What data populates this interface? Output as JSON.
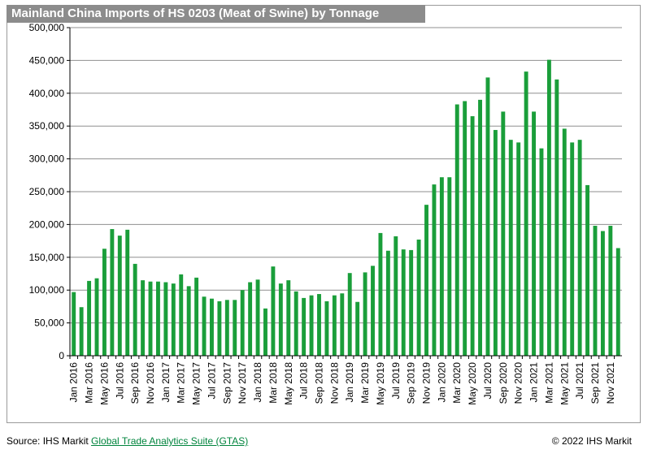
{
  "chart_data": {
    "type": "bar",
    "title": "Mainland China Imports of HS 0203 (Meat of Swine) by Tonnage",
    "xlabel": "",
    "ylabel": "",
    "ylim": [
      0,
      500000
    ],
    "yticks": [
      0,
      50000,
      100000,
      150000,
      200000,
      250000,
      300000,
      350000,
      400000,
      450000,
      500000
    ],
    "ytick_labels": [
      "0",
      "50,000",
      "100,000",
      "150,000",
      "200,000",
      "250,000",
      "300,000",
      "350,000",
      "400,000",
      "450,000",
      "500,000"
    ],
    "grid": true,
    "bar_color": "#1a9e3a",
    "categories": [
      "Jan 2016",
      "Feb 2016",
      "Mar 2016",
      "Apr 2016",
      "May 2016",
      "Jun 2016",
      "Jul 2016",
      "Aug 2016",
      "Sep 2016",
      "Oct 2016",
      "Nov 2016",
      "Dec 2016",
      "Jan 2017",
      "Feb 2017",
      "Mar 2017",
      "Apr 2017",
      "May 2017",
      "Jun 2017",
      "Jul 2017",
      "Aug 2017",
      "Sep 2017",
      "Oct 2017",
      "Nov 2017",
      "Dec 2017",
      "Jan 2018",
      "Feb 2018",
      "Mar 2018",
      "Apr 2018",
      "May 2018",
      "Jun 2018",
      "Jul 2018",
      "Aug 2018",
      "Sep 2018",
      "Oct 2018",
      "Nov 2018",
      "Dec 2018",
      "Jan 2019",
      "Feb 2019",
      "Mar 2019",
      "Apr 2019",
      "May 2019",
      "Jun 2019",
      "Jul 2019",
      "Aug 2019",
      "Sep 2019",
      "Oct 2019",
      "Nov 2019",
      "Dec 2019",
      "Jan 2020",
      "Feb 2020",
      "Mar 2020",
      "Apr 2020",
      "May 2020",
      "Jun 2020",
      "Jul 2020",
      "Aug 2020",
      "Sep 2020",
      "Oct 2020",
      "Nov 2020",
      "Dec 2020",
      "Jan 2021",
      "Feb 2021",
      "Mar 2021",
      "Apr 2021",
      "May 2021",
      "Jun 2021",
      "Jul 2021",
      "Aug 2021",
      "Sep 2021",
      "Oct 2021",
      "Nov 2021",
      "Dec 2021"
    ],
    "xtick_labels": [
      "Jan 2016",
      "Mar 2016",
      "May 2016",
      "Jul 2016",
      "Sep 2016",
      "Nov 2016",
      "Jan 2017",
      "Mar 2017",
      "May 2017",
      "Jul 2017",
      "Sep 2017",
      "Nov 2017",
      "Jan 2018",
      "Mar 2018",
      "May 2018",
      "Jul 2018",
      "Sep 2018",
      "Nov 2018",
      "Jan 2019",
      "Mar 2019",
      "May 2019",
      "Jul 2019",
      "Sep 2019",
      "Nov 2019",
      "Jan 2020",
      "Mar 2020",
      "May 2020",
      "Jul 2020",
      "Sep 2020",
      "Nov 2020",
      "Jan 2021",
      "Mar 2021",
      "May 2021",
      "Jul 2021",
      "Sep 2021",
      "Nov 2021"
    ],
    "values": [
      97000,
      74000,
      114000,
      118000,
      163000,
      193000,
      183000,
      192000,
      140000,
      115000,
      113000,
      113000,
      112000,
      110000,
      124000,
      106000,
      119000,
      90000,
      87000,
      83000,
      85000,
      85000,
      100000,
      112000,
      116000,
      72000,
      136000,
      110000,
      115000,
      98000,
      88000,
      92000,
      94000,
      83000,
      92000,
      95000,
      126000,
      82000,
      127000,
      137000,
      187000,
      160000,
      182000,
      162000,
      161000,
      177000,
      230000,
      261000,
      272000,
      272000,
      383000,
      388000,
      365000,
      390000,
      424000,
      344000,
      372000,
      329000,
      325000,
      433000,
      372000,
      316000,
      451000,
      421000,
      346000,
      325000,
      329000,
      260000,
      198000,
      190000,
      198000,
      164000
    ]
  },
  "footer": {
    "source_prefix": "Source: IHS Markit ",
    "source_link": "Global Trade Analytics Suite (GTAS)",
    "copyright": "© 2022 IHS Markit"
  }
}
